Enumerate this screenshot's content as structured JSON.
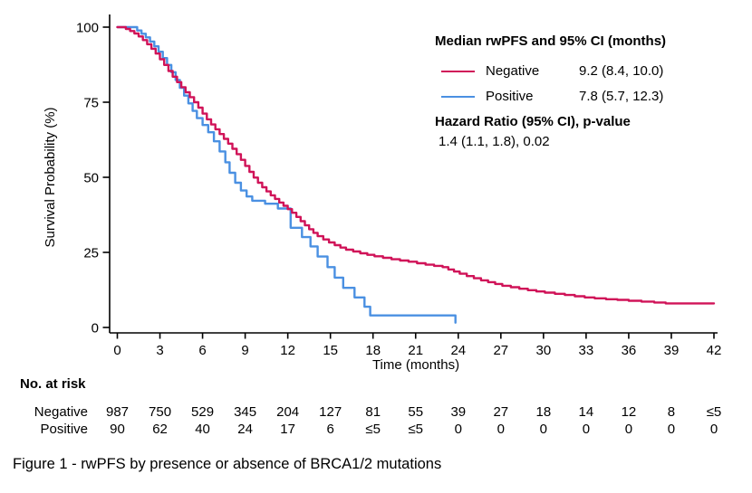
{
  "figure": {
    "caption": "Figure 1 - rwPFS by presence or absence of BRCA1/2 mutations"
  },
  "legend": {
    "median_header": "Median rwPFS and 95% CI (months)",
    "rows": [
      {
        "label": "Negative",
        "value": "9.2 (8.4, 10.0)",
        "color": "#D01358"
      },
      {
        "label": "Positive",
        "value": "7.8 (5.7, 12.3)",
        "color": "#4A90E2"
      }
    ],
    "hr_header": "Hazard Ratio (95% CI), p-value",
    "hr_value": "1.4 (1.1, 1.8), 0.02"
  },
  "risk_table": {
    "title": "No. at risk",
    "rows": [
      {
        "label": "Negative",
        "values": [
          "987",
          "750",
          "529",
          "345",
          "204",
          "127",
          "81",
          "55",
          "39",
          "27",
          "18",
          "14",
          "12",
          "8",
          "≤5"
        ]
      },
      {
        "label": "Positive",
        "values": [
          "90",
          "62",
          "40",
          "24",
          "17",
          "6",
          "≤5",
          "≤5",
          "0",
          "0",
          "0",
          "0",
          "0",
          "0",
          "0"
        ]
      }
    ]
  },
  "chart_data": {
    "type": "line",
    "subtype": "kaplan-meier-step",
    "title": "",
    "xlabel": "Time (months)",
    "ylabel": "Survival Probability (%)",
    "xlim": [
      0,
      42
    ],
    "ylim": [
      0,
      100
    ],
    "xticks": [
      0,
      3,
      6,
      9,
      12,
      15,
      18,
      21,
      24,
      27,
      30,
      33,
      36,
      39,
      42
    ],
    "yticks": [
      0,
      25,
      50,
      75,
      100
    ],
    "grid": false,
    "legend_position": "top-right",
    "series": [
      {
        "name": "Negative",
        "color": "#D01358",
        "points": [
          [
            0,
            100
          ],
          [
            0.6,
            99.4
          ],
          [
            0.9,
            98.7
          ],
          [
            1.2,
            97.9
          ],
          [
            1.5,
            96.9
          ],
          [
            1.8,
            95.7
          ],
          [
            2.1,
            94.3
          ],
          [
            2.4,
            92.8
          ],
          [
            2.7,
            91.2
          ],
          [
            3.0,
            89.3
          ],
          [
            3.3,
            87.4
          ],
          [
            3.6,
            85.4
          ],
          [
            3.9,
            83.5
          ],
          [
            4.2,
            81.7
          ],
          [
            4.5,
            80.0
          ],
          [
            4.8,
            78.3
          ],
          [
            5.1,
            76.7
          ],
          [
            5.4,
            75.0
          ],
          [
            5.7,
            73.2
          ],
          [
            6.0,
            71.2
          ],
          [
            6.3,
            69.3
          ],
          [
            6.6,
            67.6
          ],
          [
            6.9,
            66.0
          ],
          [
            7.2,
            64.4
          ],
          [
            7.5,
            62.8
          ],
          [
            7.8,
            61.2
          ],
          [
            8.1,
            59.5
          ],
          [
            8.4,
            57.7
          ],
          [
            8.7,
            55.8
          ],
          [
            9.0,
            53.8
          ],
          [
            9.3,
            51.8
          ],
          [
            9.6,
            49.9
          ],
          [
            9.9,
            48.2
          ],
          [
            10.2,
            46.7
          ],
          [
            10.5,
            45.3
          ],
          [
            10.8,
            44.0
          ],
          [
            11.1,
            42.8
          ],
          [
            11.4,
            41.6
          ],
          [
            11.7,
            40.5
          ],
          [
            12.0,
            39.4
          ],
          [
            12.3,
            38.2
          ],
          [
            12.6,
            36.8
          ],
          [
            12.9,
            35.4
          ],
          [
            13.2,
            34.0
          ],
          [
            13.5,
            32.7
          ],
          [
            13.8,
            31.5
          ],
          [
            14.1,
            30.4
          ],
          [
            14.5,
            29.3
          ],
          [
            14.9,
            28.3
          ],
          [
            15.3,
            27.4
          ],
          [
            15.7,
            26.6
          ],
          [
            16.1,
            25.9
          ],
          [
            16.6,
            25.3
          ],
          [
            17.1,
            24.7
          ],
          [
            17.6,
            24.2
          ],
          [
            18.1,
            23.7
          ],
          [
            18.7,
            23.2
          ],
          [
            19.3,
            22.7
          ],
          [
            19.9,
            22.3
          ],
          [
            20.5,
            21.9
          ],
          [
            21.1,
            21.4
          ],
          [
            21.7,
            20.9
          ],
          [
            22.3,
            20.5
          ],
          [
            22.9,
            20.1
          ],
          [
            23.3,
            19.3
          ],
          [
            23.7,
            18.6
          ],
          [
            24.1,
            17.9
          ],
          [
            24.6,
            17.1
          ],
          [
            25.1,
            16.4
          ],
          [
            25.6,
            15.7
          ],
          [
            26.1,
            15.1
          ],
          [
            26.6,
            14.5
          ],
          [
            27.1,
            13.9
          ],
          [
            27.7,
            13.4
          ],
          [
            28.3,
            12.9
          ],
          [
            28.9,
            12.4
          ],
          [
            29.5,
            12.0
          ],
          [
            30.1,
            11.6
          ],
          [
            30.8,
            11.2
          ],
          [
            31.5,
            10.8
          ],
          [
            32.2,
            10.4
          ],
          [
            32.9,
            10.0
          ],
          [
            33.6,
            9.7
          ],
          [
            34.4,
            9.4
          ],
          [
            35.2,
            9.2
          ],
          [
            36.0,
            8.9
          ],
          [
            36.9,
            8.6
          ],
          [
            37.8,
            8.3
          ],
          [
            38.6,
            8.0
          ],
          [
            42,
            8.0
          ]
        ]
      },
      {
        "name": "Positive",
        "color": "#4A90E2",
        "points": [
          [
            0,
            100
          ],
          [
            1.4,
            98.9
          ],
          [
            1.7,
            97.8
          ],
          [
            2.0,
            96.6
          ],
          [
            2.3,
            95.2
          ],
          [
            2.6,
            93.6
          ],
          [
            2.9,
            91.8
          ],
          [
            3.2,
            89.7
          ],
          [
            3.5,
            87.4
          ],
          [
            3.8,
            85.0
          ],
          [
            4.1,
            82.4
          ],
          [
            4.4,
            79.8
          ],
          [
            4.7,
            77.2
          ],
          [
            5.0,
            74.6
          ],
          [
            5.3,
            72.1
          ],
          [
            5.6,
            69.7
          ],
          [
            6.0,
            67.4
          ],
          [
            6.4,
            65.0
          ],
          [
            6.8,
            62.0
          ],
          [
            7.2,
            58.6
          ],
          [
            7.6,
            55.0
          ],
          [
            7.9,
            51.5
          ],
          [
            8.3,
            48.2
          ],
          [
            8.7,
            45.6
          ],
          [
            9.1,
            43.6
          ],
          [
            9.5,
            42.2
          ],
          [
            10.4,
            41.2
          ],
          [
            11.3,
            39.6
          ],
          [
            12.2,
            33.2
          ],
          [
            13.0,
            30.1
          ],
          [
            13.6,
            27.0
          ],
          [
            14.1,
            23.6
          ],
          [
            14.8,
            20.1
          ],
          [
            15.3,
            16.6
          ],
          [
            15.9,
            13.2
          ],
          [
            16.7,
            10.0
          ],
          [
            17.4,
            6.9
          ],
          [
            17.8,
            4.0
          ],
          [
            23.7,
            4.0
          ],
          [
            23.8,
            1.6
          ]
        ]
      }
    ]
  }
}
